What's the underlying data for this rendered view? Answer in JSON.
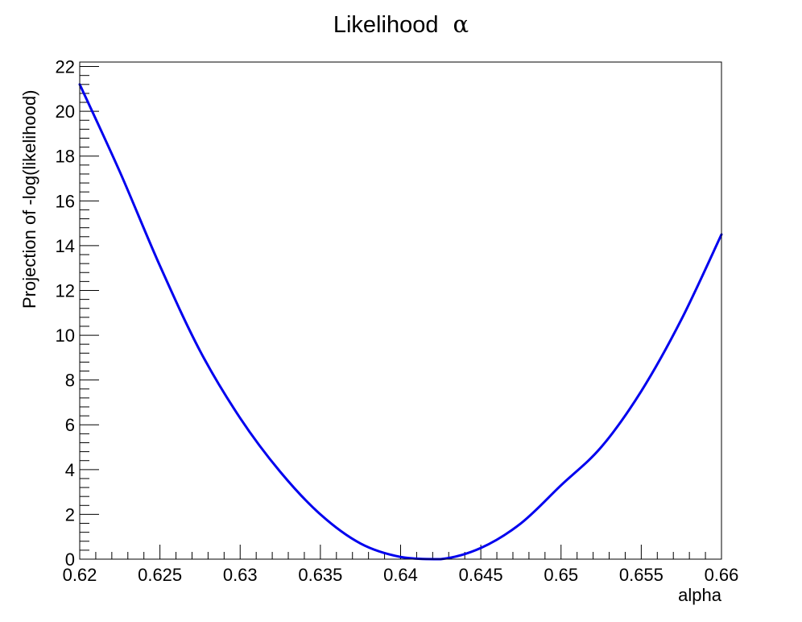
{
  "chart_data": {
    "type": "line",
    "title_text": "Likelihood",
    "title_symbol": "α",
    "xlabel": "alpha",
    "ylabel": "Projection of -log(likelihood)",
    "xlim": [
      0.62,
      0.66
    ],
    "ylim": [
      0,
      22.2
    ],
    "x_ticks": [
      0.62,
      0.625,
      0.63,
      0.635,
      0.64,
      0.645,
      0.65,
      0.655,
      0.66
    ],
    "x_tick_labels": [
      "0.62",
      "0.625",
      "0.63",
      "0.635",
      "0.64",
      "0.645",
      "0.65",
      "0.655",
      "0.66"
    ],
    "y_ticks": [
      0,
      2,
      4,
      6,
      8,
      10,
      12,
      14,
      16,
      18,
      20,
      22
    ],
    "y_tick_labels": [
      "0",
      "2",
      "4",
      "6",
      "8",
      "10",
      "12",
      "14",
      "16",
      "18",
      "20",
      "22"
    ],
    "grid": false,
    "line_color": "#0000ee",
    "series": [
      {
        "name": "nll",
        "x": [
          0.62,
          0.6225,
          0.625,
          0.6275,
          0.63,
          0.6325,
          0.635,
          0.6375,
          0.64,
          0.6425,
          0.645,
          0.6475,
          0.65,
          0.6525,
          0.655,
          0.6575,
          0.66
        ],
        "y": [
          21.2,
          17.3,
          13.1,
          9.3,
          6.3,
          3.9,
          2.0,
          0.7,
          0.1,
          0.0,
          0.5,
          1.6,
          3.3,
          5.0,
          7.5,
          10.7,
          14.5
        ]
      }
    ]
  }
}
